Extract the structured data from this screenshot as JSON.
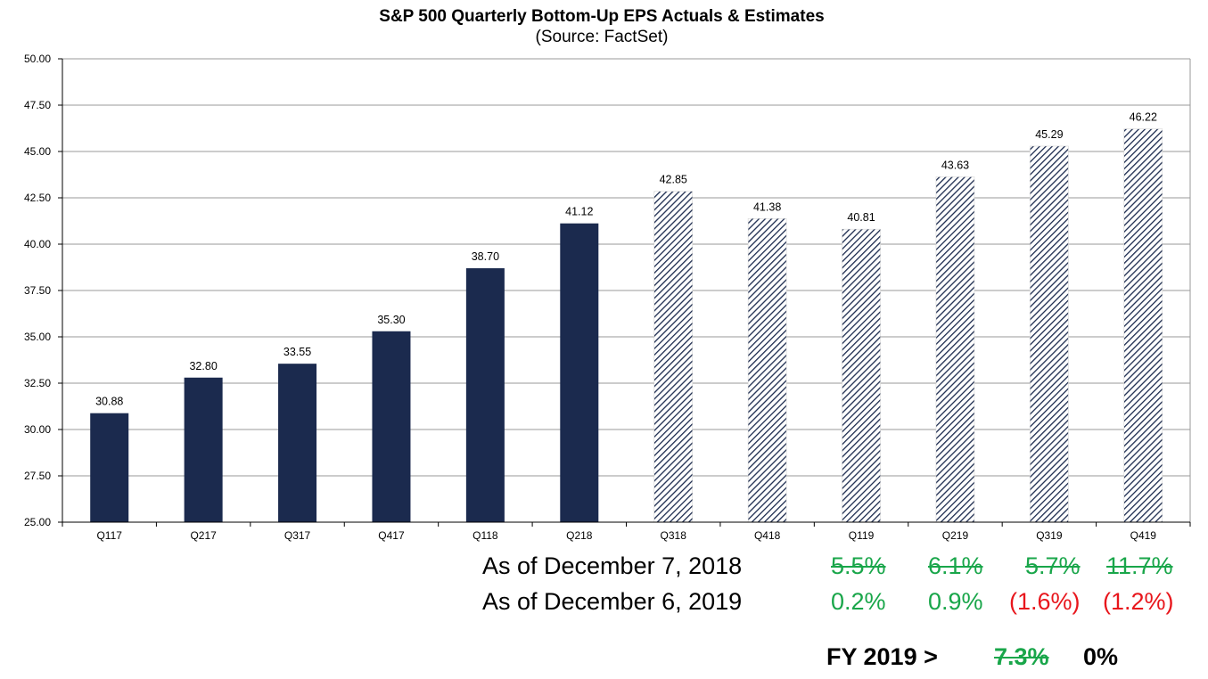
{
  "chart_data": {
    "type": "bar",
    "title": "S&P 500 Quarterly Bottom-Up EPS Actuals & Estimates",
    "subtitle": "(Source: FactSet)",
    "categories": [
      "Q117",
      "Q217",
      "Q317",
      "Q417",
      "Q118",
      "Q218",
      "Q318",
      "Q418",
      "Q119",
      "Q219",
      "Q319",
      "Q419"
    ],
    "values": [
      30.88,
      32.8,
      33.55,
      35.3,
      38.7,
      41.12,
      42.85,
      41.38,
      40.81,
      43.63,
      45.29,
      46.22
    ],
    "value_labels": [
      "30.88",
      "32.80",
      "33.55",
      "35.30",
      "38.70",
      "41.12",
      "42.85",
      "41.38",
      "40.81",
      "43.63",
      "45.29",
      "46.22"
    ],
    "bar_kind": [
      "actual",
      "actual",
      "actual",
      "actual",
      "actual",
      "actual",
      "estimate",
      "estimate",
      "estimate",
      "estimate",
      "estimate",
      "estimate"
    ],
    "ylim": [
      25,
      50
    ],
    "yticks": [
      "25.00",
      "27.50",
      "30.00",
      "32.50",
      "35.00",
      "37.50",
      "40.00",
      "42.50",
      "45.00",
      "47.50",
      "50.00"
    ],
    "xlabel": "",
    "ylabel": "",
    "grid": true,
    "legend": "none",
    "colors": {
      "actual": "#1b2a4e",
      "estimate_hatch": "#1b2a4e",
      "grid": "#9a9a9a"
    }
  },
  "annotations": {
    "row1": {
      "label": "As of December 7, 2018",
      "values": [
        "5.5%",
        "6.1%",
        "5.7%",
        "11.7%"
      ],
      "strikethrough": true,
      "color": "#19a64a"
    },
    "row2": {
      "label": "As of December 6, 2019",
      "values": [
        "0.2%",
        "0.9%",
        "(1.6%)",
        "(1.2%)"
      ],
      "colors": [
        "#19a64a",
        "#19a64a",
        "#e8161c",
        "#e8161c"
      ]
    },
    "fy": {
      "label": "FY 2019 >",
      "old_value": "7.3%",
      "new_value": "0%"
    }
  }
}
